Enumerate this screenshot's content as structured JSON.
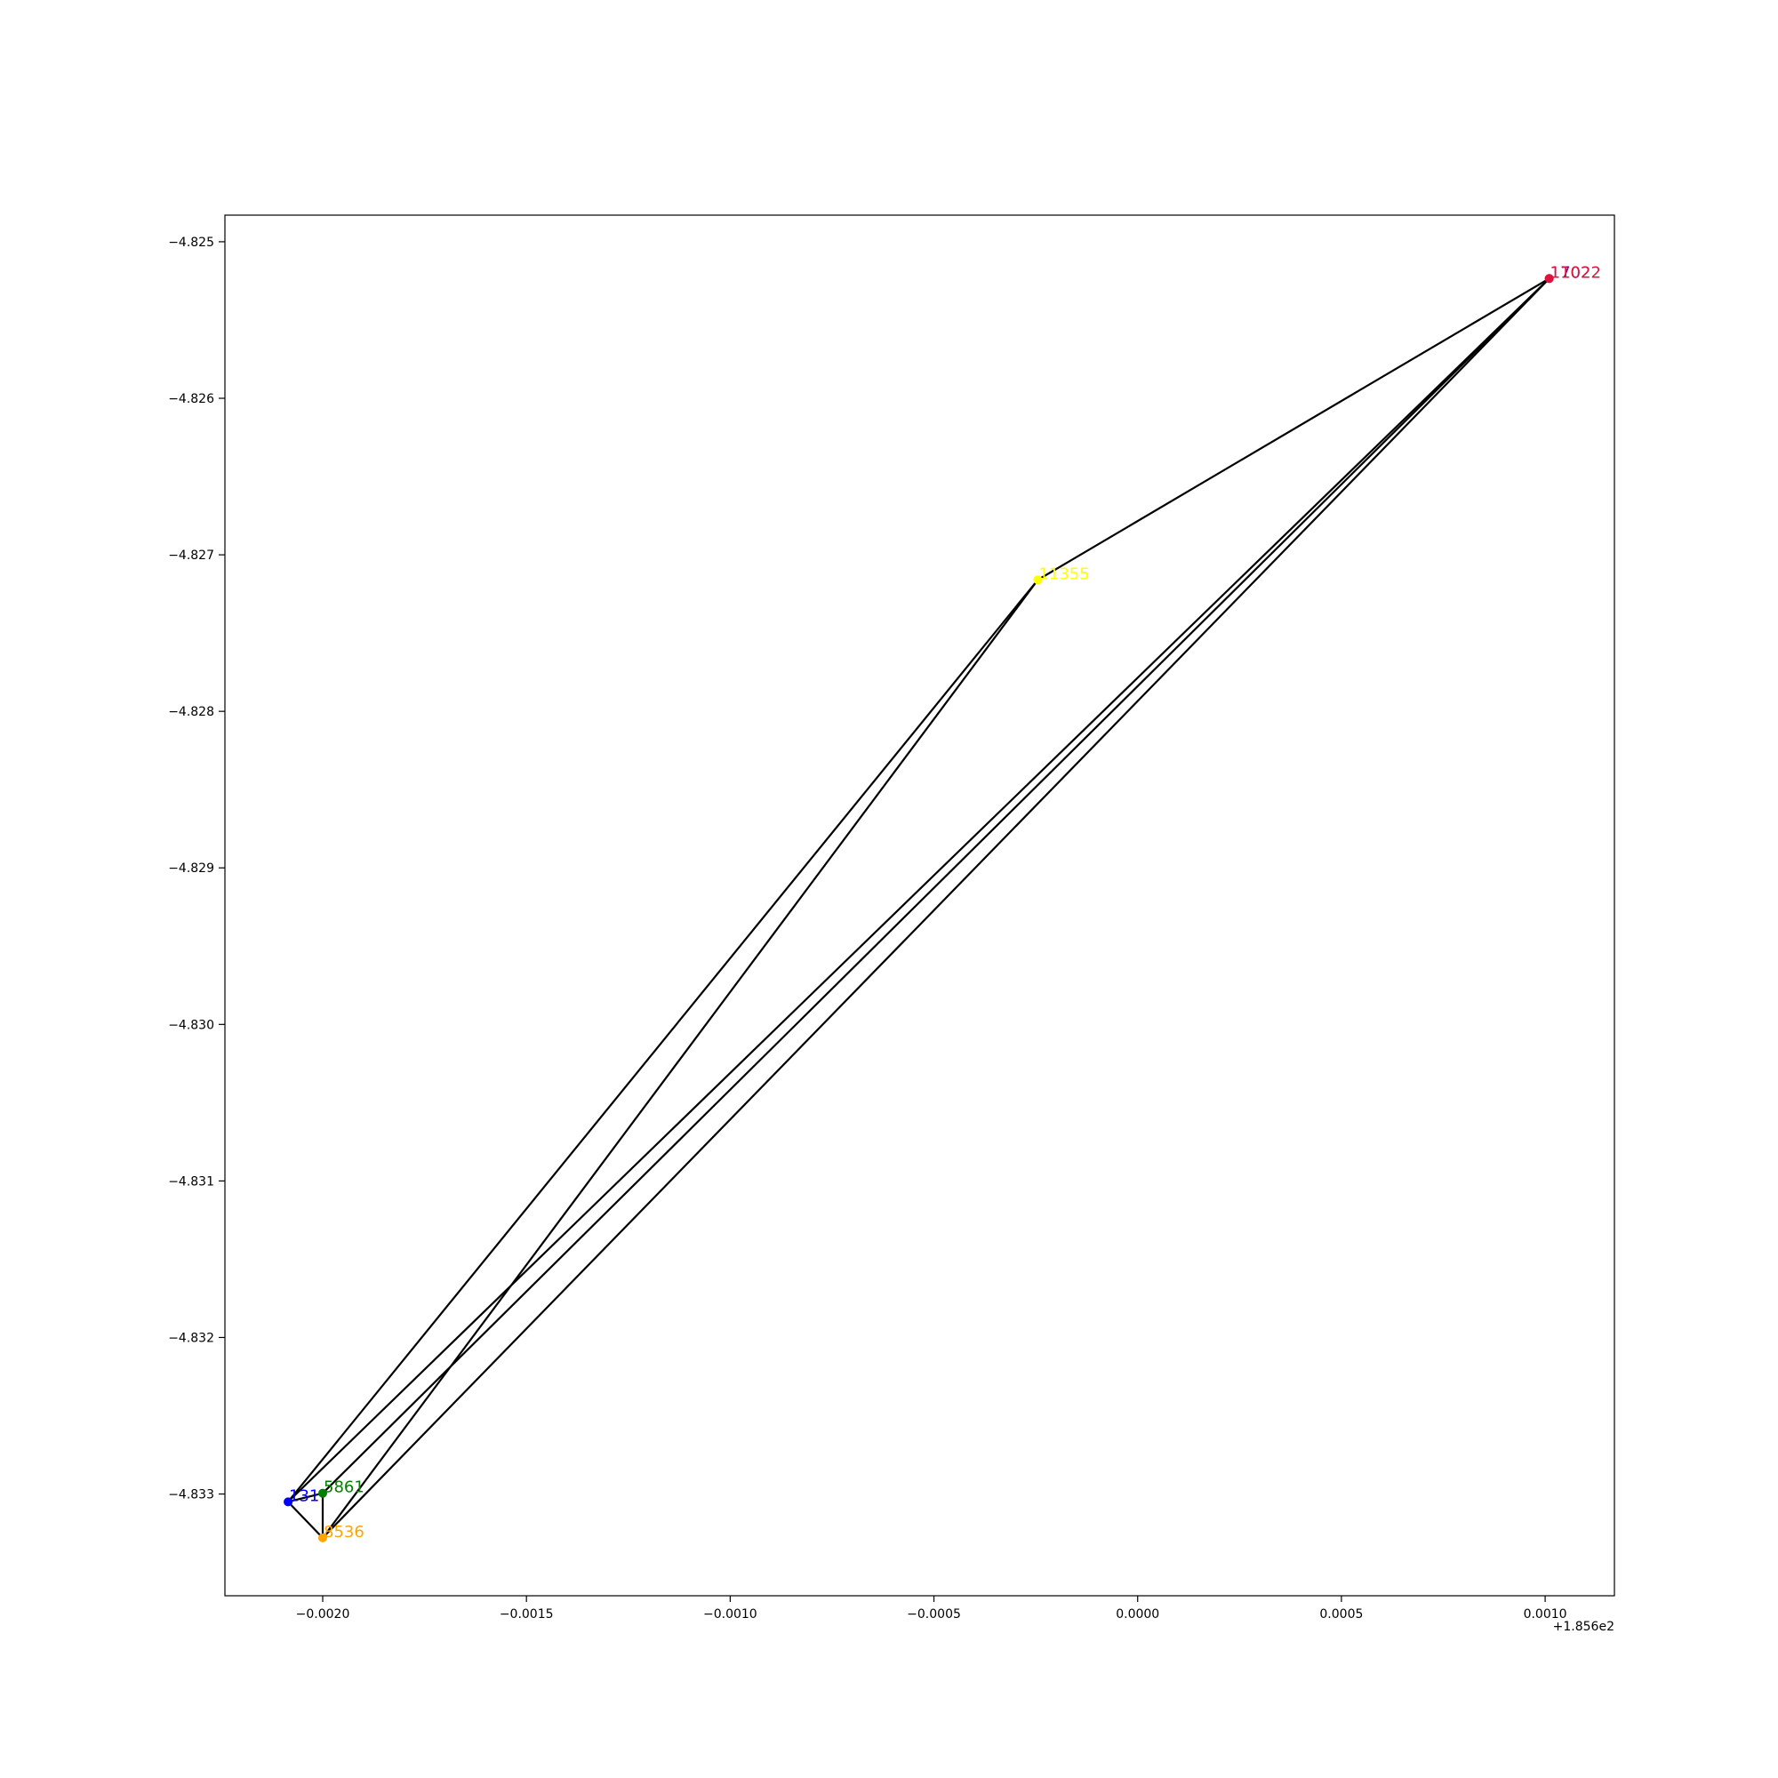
{
  "chart_data": {
    "type": "scatter",
    "x_offset_label": "+1.856e2",
    "xlim": [
      -0.00224,
      0.00117
    ],
    "ylim": [
      -4.83365,
      -4.82483
    ],
    "xticks": [
      {
        "value": -0.002,
        "label": "−0.0020"
      },
      {
        "value": -0.0015,
        "label": "−0.0015"
      },
      {
        "value": -0.001,
        "label": "−0.0010"
      },
      {
        "value": -0.0005,
        "label": "−0.0005"
      },
      {
        "value": 0.0,
        "label": "0.0000"
      },
      {
        "value": 0.0005,
        "label": "0.0005"
      },
      {
        "value": 0.001,
        "label": "0.0010"
      }
    ],
    "yticks": [
      {
        "value": -4.825,
        "label": "−4.825"
      },
      {
        "value": -4.826,
        "label": "−4.826"
      },
      {
        "value": -4.827,
        "label": "−4.827"
      },
      {
        "value": -4.828,
        "label": "−4.828"
      },
      {
        "value": -4.829,
        "label": "−4.829"
      },
      {
        "value": -4.83,
        "label": "−4.830"
      },
      {
        "value": -4.831,
        "label": "−4.831"
      },
      {
        "value": -4.832,
        "label": "−4.832"
      },
      {
        "value": -4.833,
        "label": "−4.833"
      }
    ],
    "nodes": [
      {
        "id": "1702",
        "label": "1702",
        "x": 0.00101,
        "y": -4.825235,
        "color": "#800080"
      },
      {
        "id": "11022",
        "label": "11022",
        "x": 0.00101,
        "y": -4.825235,
        "color": "#dc143c"
      },
      {
        "id": "11355",
        "label": "11355",
        "x": -0.000245,
        "y": -4.82716,
        "color": "#ffff00"
      },
      {
        "id": "131",
        "label": "131",
        "x": -0.002085,
        "y": -4.83305,
        "color": "#0000ff"
      },
      {
        "id": "5861",
        "label": "5861",
        "x": -0.002,
        "y": -4.832995,
        "color": "#008000"
      },
      {
        "id": "8536",
        "label": "8536",
        "x": -0.002,
        "y": -4.83328,
        "color": "#ffa500"
      }
    ],
    "edges": [
      [
        "1702",
        "11355"
      ],
      [
        "1702",
        "131"
      ],
      [
        "1702",
        "5861"
      ],
      [
        "1702",
        "8536"
      ],
      [
        "11355",
        "131"
      ],
      [
        "11355",
        "8536"
      ],
      [
        "131",
        "5861"
      ],
      [
        "131",
        "8536"
      ],
      [
        "5861",
        "8536"
      ]
    ]
  }
}
